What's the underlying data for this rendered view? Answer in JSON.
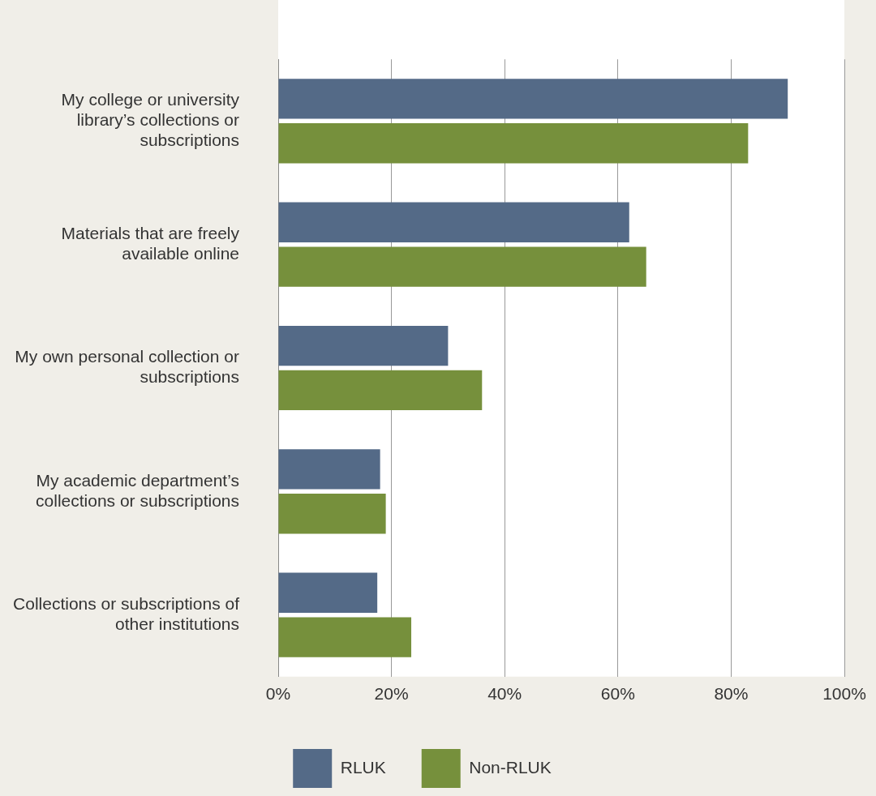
{
  "chart_data": {
    "type": "bar",
    "orientation": "horizontal",
    "categories": [
      "My college or university library’s collections or subscriptions",
      "Materials that are freely available online",
      "My own personal collection or subscriptions",
      "My academic department’s collections or subscriptions",
      "Collections or subscriptions of other institutions"
    ],
    "series": [
      {
        "name": "RLUK",
        "color": "#546a87",
        "values": [
          90,
          62,
          30,
          18,
          17.5
        ]
      },
      {
        "name": "Non-RLUK",
        "color": "#76903c",
        "values": [
          83,
          65,
          36,
          19,
          23.5
        ]
      }
    ],
    "xlim": [
      0,
      100
    ],
    "xticks": [
      {
        "value": 0,
        "label": "0%"
      },
      {
        "value": 20,
        "label": "20%"
      },
      {
        "value": 40,
        "label": "40%"
      },
      {
        "value": 60,
        "label": "60%"
      },
      {
        "value": 80,
        "label": "80%"
      },
      {
        "value": 100,
        "label": "100%"
      }
    ],
    "grid": "x",
    "legend": "bottom"
  }
}
